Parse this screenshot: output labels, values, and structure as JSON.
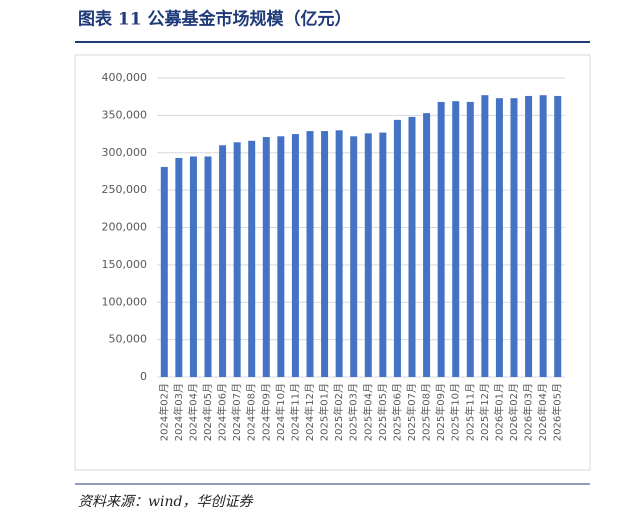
{
  "chart_data": {
    "type": "bar",
    "title": "图表 11   公募基金市场规模（亿元）",
    "source": "资料来源：wind，华创证券",
    "categories": [
      "2024年02月",
      "2024年03月",
      "2024年04月",
      "2024年05月",
      "2024年06月",
      "2024年07月",
      "2024年08月",
      "2024年09月",
      "2024年10月",
      "2024年11月",
      "2024年12月",
      "2025年01月",
      "2025年02月",
      "2025年03月",
      "2025年04月",
      "2025年05月",
      "2025年06月",
      "2025年07月",
      "2025年08月",
      "2025年09月",
      "2025年10月",
      "2025年11月",
      "2025年12月",
      "2026年01月",
      "2026年02月",
      "2026年03月",
      "2026年04月",
      "2026年05月"
    ],
    "values": [
      281000,
      293000,
      295000,
      295000,
      310000,
      314000,
      316000,
      321000,
      322000,
      325000,
      329000,
      329000,
      330000,
      322000,
      326000,
      327000,
      344000,
      348000,
      353000,
      368000,
      369000,
      368000,
      377000,
      373000,
      373000,
      376000,
      377000,
      376000
    ],
    "color": "#4472c4",
    "ylim": [
      0,
      400000
    ],
    "yticks": [
      0,
      {
        "value": 50000,
        "label": "50,000"
      },
      {
        "value": 100000,
        "label": "100,000"
      },
      {
        "value": 150000,
        "label": "150,000"
      },
      {
        "value": 200000,
        "label": "200,000"
      },
      {
        "value": 250000,
        "label": "250,000"
      },
      {
        "value": 300000,
        "label": "300,000"
      },
      {
        "value": 350000,
        "label": "350,000"
      },
      {
        "value": 400000,
        "label": "400,000"
      }
    ],
    "grid": true
  }
}
